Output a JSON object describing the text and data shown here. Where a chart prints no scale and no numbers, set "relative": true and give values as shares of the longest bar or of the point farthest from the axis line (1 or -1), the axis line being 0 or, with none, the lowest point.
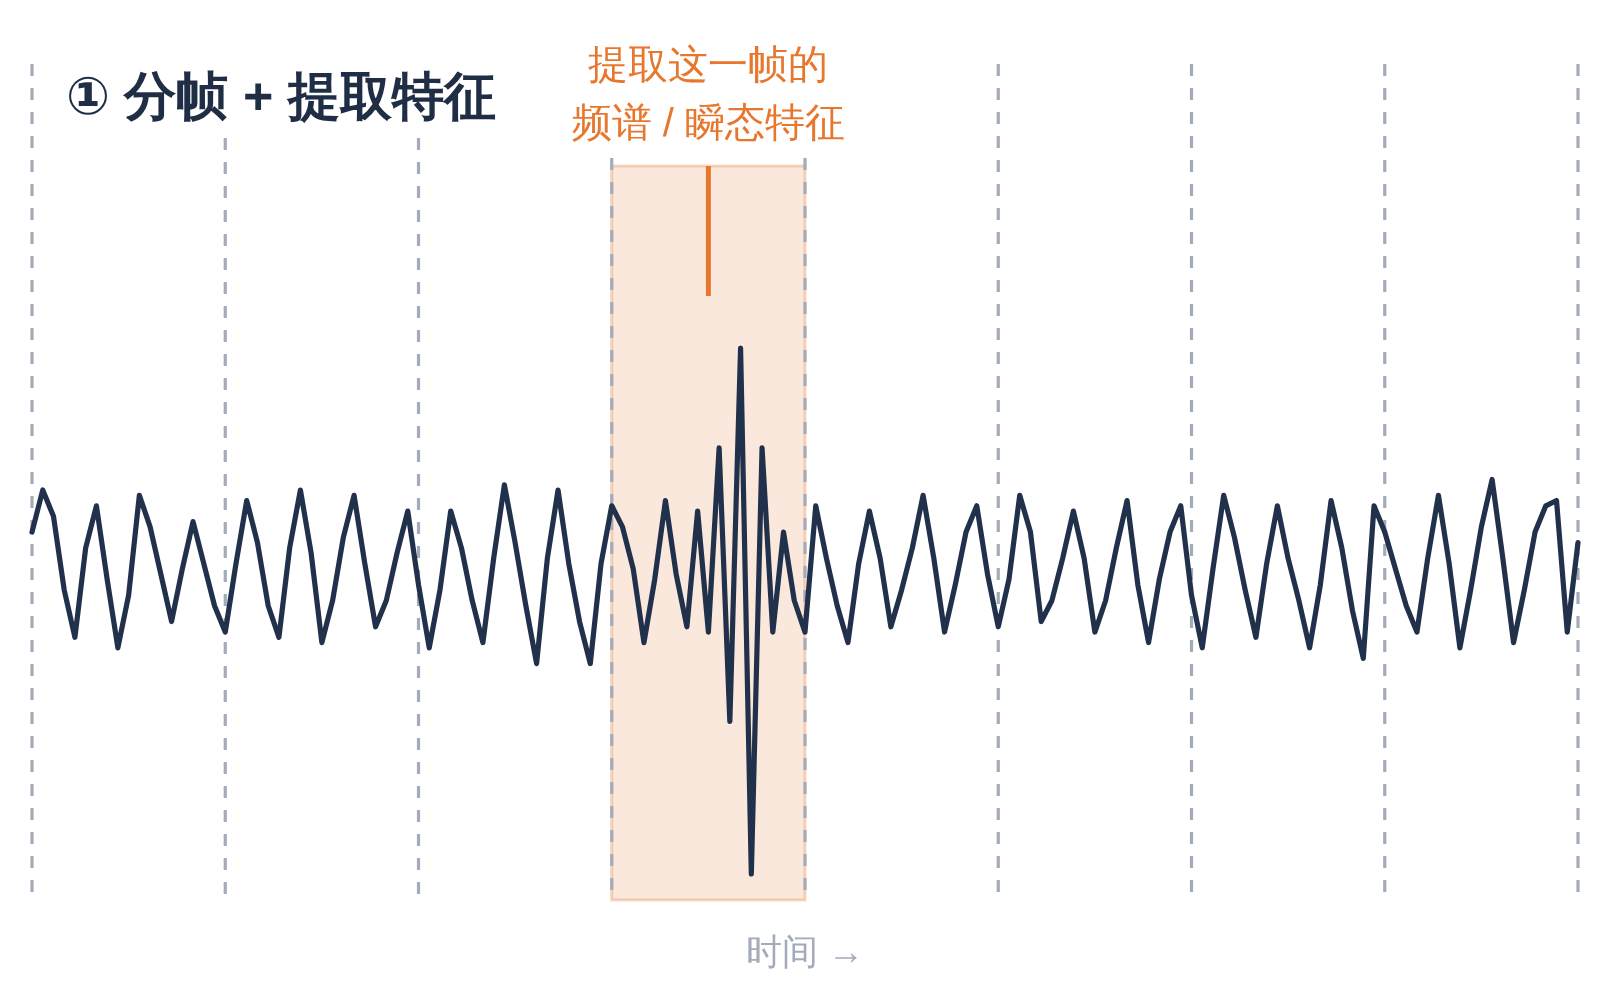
{
  "chart_data": {
    "type": "line",
    "title": "① 分帧 + 提取特征",
    "xlabel": "时间 →",
    "relative": true,
    "line_style": "solid",
    "annotations": [
      "提取这一帧的",
      "频谱 / 瞬态特征"
    ],
    "categories": [
      null,
      null,
      null,
      null,
      null,
      null,
      null,
      null,
      null,
      null,
      null,
      null,
      null,
      null,
      null,
      null,
      null,
      null,
      null,
      null,
      null,
      null,
      null,
      null,
      null,
      null,
      null,
      null,
      null,
      null,
      null,
      null,
      null,
      null,
      null,
      null,
      null,
      null,
      null,
      null,
      null,
      null,
      null,
      null,
      null,
      null,
      null,
      null,
      null,
      null,
      null,
      null,
      null,
      null,
      null,
      null,
      null,
      null,
      null,
      null,
      null,
      null,
      null,
      null,
      null,
      null,
      null,
      null,
      null,
      null,
      null,
      null,
      null,
      null,
      null,
      null,
      null,
      null,
      null,
      null,
      null,
      null,
      null,
      null,
      null,
      null,
      null,
      null,
      null,
      null,
      null,
      null,
      null,
      null,
      null,
      null,
      null,
      null,
      null,
      null,
      null,
      null,
      null,
      null,
      null,
      null,
      null,
      null,
      null,
      null,
      null,
      null,
      null,
      null,
      null,
      null,
      null,
      null,
      null,
      null,
      null,
      null,
      null,
      null,
      null,
      null,
      null,
      null,
      null,
      null,
      null,
      null,
      null,
      null,
      null,
      null,
      null,
      null,
      null,
      null,
      null,
      null,
      null,
      null,
      null
    ],
    "series": [
      {
        "color": "#22314b",
        "values": [
          0.65,
          0.73,
          0.68,
          0.54,
          0.45,
          0.62,
          0.7,
          0.56,
          0.43,
          0.53,
          0.72,
          0.66,
          0.57,
          0.48,
          0.58,
          0.67,
          0.59,
          0.51,
          0.46,
          0.59,
          0.71,
          0.63,
          0.51,
          0.45,
          0.62,
          0.73,
          0.61,
          0.44,
          0.52,
          0.64,
          0.72,
          0.59,
          0.47,
          0.52,
          0.61,
          0.69,
          0.55,
          0.43,
          0.54,
          0.69,
          0.62,
          0.52,
          0.44,
          0.6,
          0.74,
          0.63,
          0.51,
          0.4,
          0.6,
          0.73,
          0.59,
          0.48,
          0.4,
          0.59,
          0.7,
          0.66,
          0.58,
          0.44,
          0.56,
          0.71,
          0.57,
          0.47,
          0.69,
          0.46,
          0.81,
          0.29,
          1.0,
          0.0,
          0.81,
          0.46,
          0.65,
          0.52,
          0.46,
          0.7,
          0.6,
          0.51,
          0.44,
          0.59,
          0.69,
          0.6,
          0.47,
          0.54,
          0.62,
          0.72,
          0.6,
          0.46,
          0.55,
          0.65,
          0.7,
          0.57,
          0.47,
          0.56,
          0.72,
          0.65,
          0.48,
          0.52,
          0.6,
          0.69,
          0.6,
          0.46,
          0.52,
          0.62,
          0.71,
          0.55,
          0.44,
          0.56,
          0.65,
          0.7,
          0.53,
          0.43,
          0.58,
          0.72,
          0.64,
          0.54,
          0.45,
          0.59,
          0.7,
          0.6,
          0.52,
          0.43,
          0.55,
          0.71,
          0.62,
          0.5,
          0.41,
          0.7,
          0.65,
          0.58,
          0.51,
          0.46,
          0.6,
          0.72,
          0.59,
          0.43,
          0.54,
          0.66,
          0.75,
          0.6,
          0.44,
          0.54,
          0.65,
          0.7,
          0.71,
          0.46,
          0.63
        ]
      }
    ]
  }
}
